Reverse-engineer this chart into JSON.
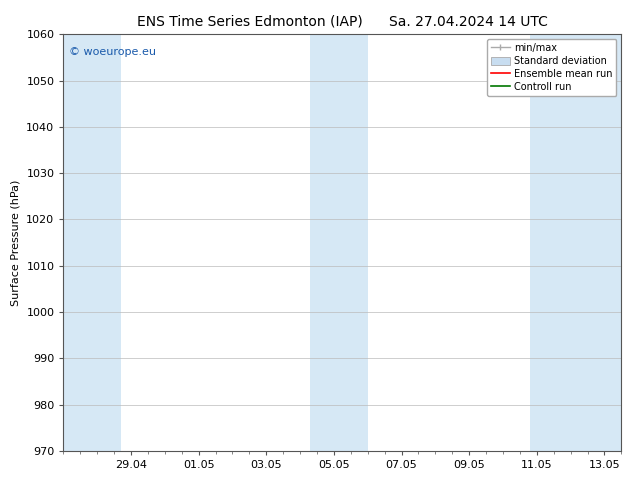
{
  "title_left": "ENS Time Series Edmonton (IAP)",
  "title_right": "Sa. 27.04.2024 14 UTC",
  "ylabel": "Surface Pressure (hPa)",
  "ylim": [
    970,
    1060
  ],
  "yticks": [
    970,
    980,
    990,
    1000,
    1010,
    1020,
    1030,
    1040,
    1050,
    1060
  ],
  "xlim": [
    0,
    16.5
  ],
  "x_tick_positions": [
    2,
    4,
    6,
    8,
    10,
    12,
    14,
    16
  ],
  "x_tick_labels": [
    "29.04",
    "01.05",
    "03.05",
    "05.05",
    "07.05",
    "09.05",
    "11.05",
    "13.05"
  ],
  "shaded_band_color": "#d6e8f5",
  "shaded_bands": [
    {
      "x_start": 0.0,
      "x_end": 1.7
    },
    {
      "x_start": 7.3,
      "x_end": 9.0
    },
    {
      "x_start": 13.8,
      "x_end": 16.5
    }
  ],
  "background_color": "#ffffff",
  "grid_color": "#bbbbbb",
  "watermark_text": "© woeurope.eu",
  "watermark_color": "#1a5aab",
  "legend_items": [
    {
      "label": "min/max",
      "color": "#aaaaaa"
    },
    {
      "label": "Standard deviation",
      "color": "#c8ddf0"
    },
    {
      "label": "Ensemble mean run",
      "color": "#ff0000"
    },
    {
      "label": "Controll run",
      "color": "#007700"
    }
  ],
  "title_fontsize": 10,
  "axis_label_fontsize": 8,
  "tick_fontsize": 8,
  "legend_fontsize": 7,
  "watermark_fontsize": 8
}
